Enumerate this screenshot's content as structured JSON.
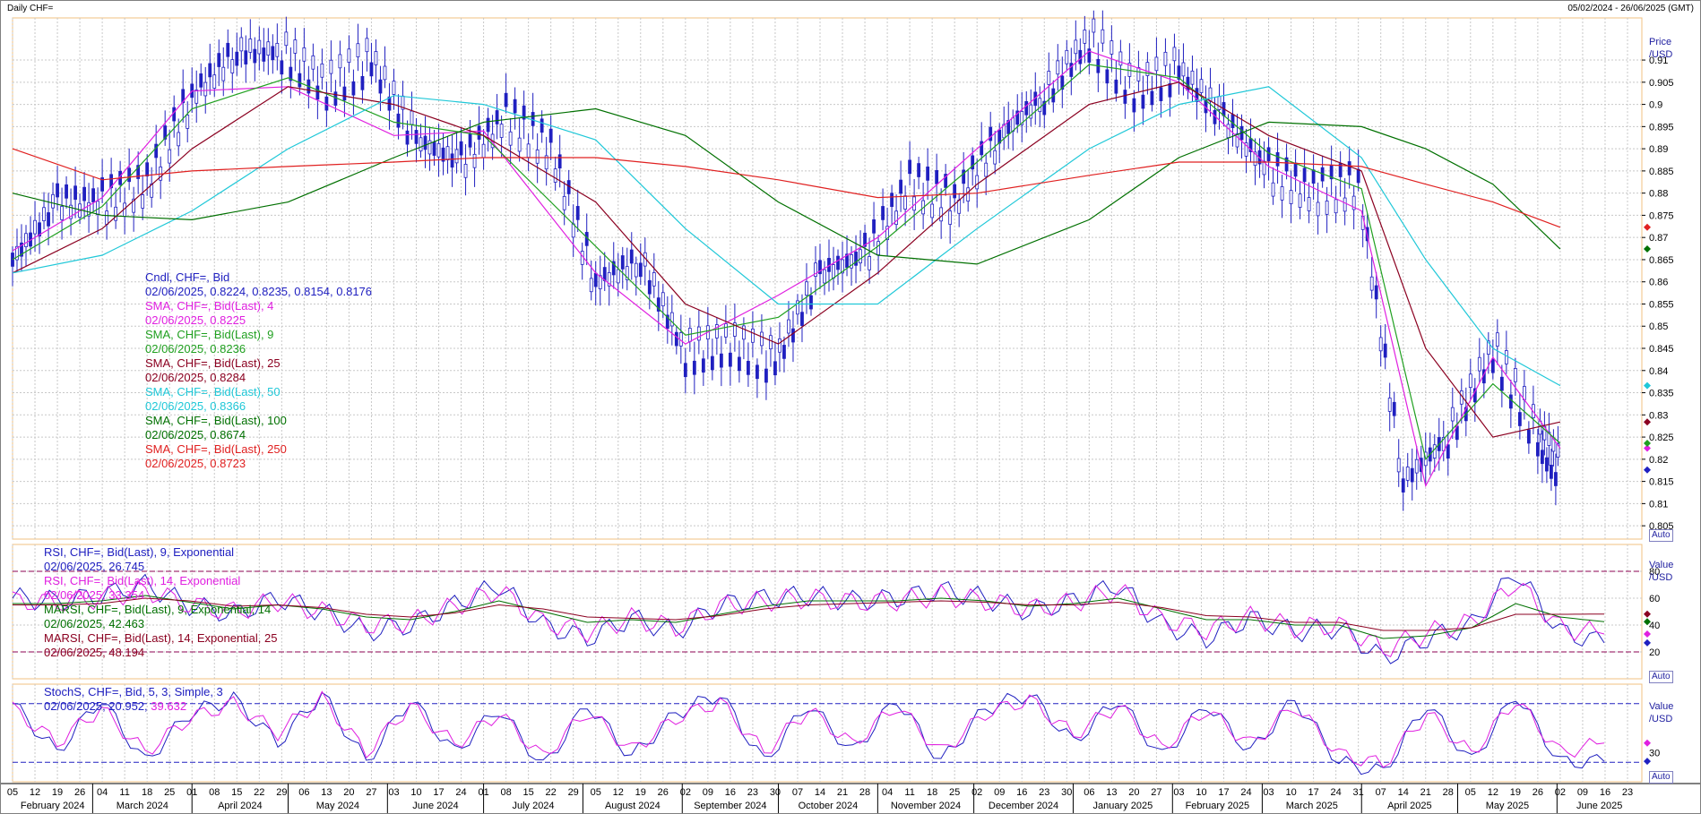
{
  "header": {
    "title": "Daily CHF=",
    "date_range": "05/02/2024 - 26/06/2025 (GMT)"
  },
  "price_axis": {
    "title_line1": "Price",
    "title_line2": "/USD",
    "ticks": [
      "0.91",
      "0.905",
      "0.9",
      "0.895",
      "0.89",
      "0.885",
      "0.88",
      "0.875",
      "0.87",
      "0.865",
      "0.86",
      "0.855",
      "0.85",
      "0.845",
      "0.84",
      "0.835",
      "0.83",
      "0.825",
      "0.82",
      "0.815",
      "0.81",
      "0.805"
    ],
    "auto_label": "Auto"
  },
  "rsi_axis": {
    "title_line1": "Value",
    "title_line2": "/USD",
    "ticks": [
      "80",
      "60",
      "40",
      "20"
    ],
    "auto_label": "Auto"
  },
  "stoch_axis": {
    "title_line1": "Value",
    "title_line2": "/USD",
    "ticks": [
      "30"
    ],
    "auto_label": "Auto"
  },
  "time_axis": {
    "day_ticks": [
      "05",
      "12",
      "19",
      "26",
      "04",
      "11",
      "18",
      "25",
      "01",
      "08",
      "15",
      "22",
      "29",
      "06",
      "13",
      "20",
      "27",
      "03",
      "10",
      "17",
      "24",
      "01",
      "08",
      "15",
      "22",
      "29",
      "05",
      "12",
      "19",
      "26",
      "02",
      "09",
      "16",
      "23",
      "30",
      "07",
      "14",
      "21",
      "28",
      "04",
      "11",
      "18",
      "25",
      "02",
      "09",
      "16",
      "23",
      "30",
      "06",
      "13",
      "20",
      "27",
      "03",
      "10",
      "17",
      "24",
      "03",
      "10",
      "17",
      "24",
      "31",
      "07",
      "14",
      "21",
      "28",
      "05",
      "12",
      "19",
      "26",
      "02",
      "09",
      "16",
      "23"
    ],
    "months": [
      "February 2024",
      "March 2024",
      "April 2024",
      "May 2024",
      "June 2024",
      "July 2024",
      "August 2024",
      "September 2024",
      "October 2024",
      "November 2024",
      "December 2024",
      "January 2025",
      "February 2025",
      "March 2025",
      "April 2025",
      "May 2025",
      "June 2025"
    ]
  },
  "legend_price": [
    {
      "text": "Cndl, CHF=, Bid",
      "color": "#2020c0"
    },
    {
      "text": "02/06/2025, 0.8224, 0.8235, 0.8154, 0.8176",
      "color": "#2020c0"
    },
    {
      "text": "SMA, CHF=, Bid(Last),  4",
      "color": "#e020e0"
    },
    {
      "text": "02/06/2025, 0.8225",
      "color": "#e020e0"
    },
    {
      "text": "SMA, CHF=, Bid(Last),  9",
      "color": "#20a020"
    },
    {
      "text": "02/06/2025, 0.8236",
      "color": "#20a020"
    },
    {
      "text": "SMA, CHF=, Bid(Last),  25",
      "color": "#8b0020"
    },
    {
      "text": "02/06/2025, 0.8284",
      "color": "#8b0020"
    },
    {
      "text": "SMA, CHF=, Bid(Last),  50",
      "color": "#20c8d8"
    },
    {
      "text": "02/06/2025, 0.8366",
      "color": "#20c8d8"
    },
    {
      "text": "SMA, CHF=, Bid(Last),  100",
      "color": "#007000"
    },
    {
      "text": "02/06/2025, 0.8674",
      "color": "#007000"
    },
    {
      "text": "SMA, CHF=, Bid(Last),  250",
      "color": "#e02020"
    },
    {
      "text": "02/06/2025, 0.8723",
      "color": "#e02020"
    }
  ],
  "legend_rsi": [
    {
      "text": "RSI, CHF=, Bid(Last),  9, Exponential",
      "color": "#2020c0"
    },
    {
      "text": "02/06/2025, 26.745",
      "color": "#2020c0"
    },
    {
      "text": "RSI, CHF=, Bid(Last),  14, Exponential",
      "color": "#e020e0"
    },
    {
      "text": "02/06/2025, 33.354",
      "color": "#e020e0"
    },
    {
      "text": "MARSI, CHF=, Bid(Last),  9, Exponential, 14",
      "color": "#007000"
    },
    {
      "text": "02/06/2025, 42.463",
      "color": "#007000"
    },
    {
      "text": "MARSI, CHF=, Bid(Last),  14, Exponential, 25",
      "color": "#8b0020"
    },
    {
      "text": "02/06/2025, 48.194",
      "color": "#8b0020"
    }
  ],
  "legend_stoch": [
    {
      "text": "StochS, CHF=, Bid,  5, 3, Simple, 3",
      "color": "#2020c0"
    },
    {
      "text": "02/06/2025, 20.952, ",
      "color": "#2020c0"
    },
    {
      "text": "39.632",
      "color": "#e020e0"
    }
  ],
  "chart_data": {
    "type": "line",
    "title": "Daily CHF=",
    "ylim": [
      0.802,
      0.9195
    ],
    "series": [
      {
        "name": "Cndl, CHF=, Bid",
        "color": "#2020c0",
        "x": [
          "2024-02-05",
          "2024-02-19",
          "2024-03-04",
          "2024-03-18",
          "2024-04-01",
          "2024-04-15",
          "2024-04-29",
          "2024-05-13",
          "2024-05-27",
          "2024-06-10",
          "2024-06-24",
          "2024-07-08",
          "2024-07-22",
          "2024-08-05",
          "2024-08-19",
          "2024-09-02",
          "2024-09-16",
          "2024-09-30",
          "2024-10-14",
          "2024-10-28",
          "2024-11-11",
          "2024-11-25",
          "2024-12-09",
          "2024-12-23",
          "2025-01-06",
          "2025-01-20",
          "2025-02-03",
          "2025-02-17",
          "2025-03-03",
          "2025-03-17",
          "2025-03-31",
          "2025-04-14",
          "2025-04-28",
          "2025-05-12",
          "2025-05-26",
          "2025-06-02"
        ],
        "values": [
          0.865,
          0.878,
          0.878,
          0.882,
          0.902,
          0.912,
          0.912,
          0.904,
          0.91,
          0.892,
          0.887,
          0.897,
          0.89,
          0.86,
          0.865,
          0.844,
          0.846,
          0.842,
          0.862,
          0.866,
          0.882,
          0.878,
          0.893,
          0.902,
          0.915,
          0.903,
          0.908,
          0.897,
          0.885,
          0.88,
          0.882,
          0.815,
          0.825,
          0.845,
          0.825,
          0.8176
        ]
      },
      {
        "name": "SMA 4",
        "color": "#e020e0",
        "x": [
          "2024-02-05",
          "2024-03-04",
          "2024-04-01",
          "2024-05-01",
          "2024-06-03",
          "2024-07-01",
          "2024-08-05",
          "2024-09-02",
          "2024-10-01",
          "2024-11-01",
          "2024-12-02",
          "2025-01-06",
          "2025-02-03",
          "2025-03-03",
          "2025-04-01",
          "2025-04-21",
          "2025-05-12",
          "2025-06-02"
        ],
        "values": [
          0.867,
          0.879,
          0.903,
          0.904,
          0.893,
          0.894,
          0.862,
          0.846,
          0.857,
          0.87,
          0.89,
          0.912,
          0.905,
          0.886,
          0.876,
          0.814,
          0.843,
          0.8225
        ]
      },
      {
        "name": "SMA 9",
        "color": "#20a020",
        "x": [
          "2024-02-05",
          "2024-03-04",
          "2024-04-01",
          "2024-05-01",
          "2024-06-03",
          "2024-07-01",
          "2024-08-05",
          "2024-09-02",
          "2024-10-01",
          "2024-11-01",
          "2024-12-02",
          "2025-01-06",
          "2025-02-03",
          "2025-03-03",
          "2025-04-01",
          "2025-04-21",
          "2025-05-12",
          "2025-06-02"
        ],
        "values": [
          0.865,
          0.877,
          0.899,
          0.906,
          0.896,
          0.893,
          0.868,
          0.848,
          0.852,
          0.868,
          0.887,
          0.909,
          0.906,
          0.889,
          0.881,
          0.82,
          0.837,
          0.8236
        ]
      },
      {
        "name": "SMA 25",
        "color": "#8b0020",
        "x": [
          "2024-02-05",
          "2024-03-04",
          "2024-04-01",
          "2024-05-01",
          "2024-06-03",
          "2024-07-01",
          "2024-08-05",
          "2024-09-02",
          "2024-10-01",
          "2024-11-01",
          "2024-12-02",
          "2025-01-06",
          "2025-02-03",
          "2025-03-03",
          "2025-04-01",
          "2025-04-21",
          "2025-05-12",
          "2025-06-02"
        ],
        "values": [
          0.862,
          0.872,
          0.89,
          0.904,
          0.9,
          0.893,
          0.878,
          0.855,
          0.846,
          0.862,
          0.882,
          0.9,
          0.905,
          0.893,
          0.885,
          0.845,
          0.825,
          0.8284
        ]
      },
      {
        "name": "SMA 50",
        "color": "#20c8d8",
        "x": [
          "2024-02-05",
          "2024-03-04",
          "2024-04-01",
          "2024-05-01",
          "2024-06-03",
          "2024-07-01",
          "2024-08-05",
          "2024-09-02",
          "2024-10-01",
          "2024-11-01",
          "2024-12-02",
          "2025-01-06",
          "2025-02-03",
          "2025-03-03",
          "2025-04-01",
          "2025-04-21",
          "2025-05-12",
          "2025-06-02"
        ],
        "values": [
          0.862,
          0.866,
          0.876,
          0.89,
          0.902,
          0.9,
          0.892,
          0.872,
          0.855,
          0.855,
          0.872,
          0.89,
          0.9,
          0.904,
          0.888,
          0.865,
          0.845,
          0.8366
        ]
      },
      {
        "name": "SMA 100",
        "color": "#007000",
        "x": [
          "2024-02-05",
          "2024-03-04",
          "2024-04-01",
          "2024-05-01",
          "2024-06-03",
          "2024-07-01",
          "2024-08-05",
          "2024-09-02",
          "2024-10-01",
          "2024-11-01",
          "2024-12-02",
          "2025-01-06",
          "2025-02-03",
          "2025-03-03",
          "2025-04-01",
          "2025-04-21",
          "2025-05-12",
          "2025-06-02"
        ],
        "values": [
          0.88,
          0.875,
          0.874,
          0.878,
          0.888,
          0.896,
          0.899,
          0.893,
          0.878,
          0.866,
          0.864,
          0.874,
          0.888,
          0.896,
          0.895,
          0.89,
          0.882,
          0.8674
        ]
      },
      {
        "name": "SMA 250",
        "color": "#e02020",
        "x": [
          "2024-02-05",
          "2024-03-04",
          "2024-04-01",
          "2024-05-01",
          "2024-06-03",
          "2024-07-01",
          "2024-08-05",
          "2024-09-02",
          "2024-10-01",
          "2024-11-01",
          "2024-12-02",
          "2025-01-06",
          "2025-02-03",
          "2025-03-03",
          "2025-04-01",
          "2025-04-21",
          "2025-05-12",
          "2025-06-02"
        ],
        "values": [
          0.89,
          0.883,
          0.885,
          0.886,
          0.887,
          0.888,
          0.888,
          0.886,
          0.883,
          0.879,
          0.88,
          0.884,
          0.887,
          0.887,
          0.886,
          0.882,
          0.878,
          0.8723
        ]
      }
    ],
    "rsi": {
      "ylim": [
        0,
        100
      ],
      "ref_lines": [
        80,
        20
      ],
      "series": [
        {
          "name": "RSI 9",
          "color": "#2020c0",
          "values": [
            60,
            58,
            62,
            70,
            55,
            48,
            60,
            50,
            35,
            40,
            55,
            70,
            40,
            30,
            45,
            35,
            55,
            60,
            62,
            58,
            60,
            66,
            60,
            50,
            58,
            70,
            40,
            30,
            45,
            35,
            38,
            15,
            30,
            40,
            80,
            35,
            26.745
          ]
        },
        {
          "name": "RSI 14",
          "color": "#e020e0",
          "values": [
            58,
            57,
            60,
            66,
            55,
            50,
            58,
            50,
            40,
            42,
            54,
            66,
            42,
            35,
            45,
            38,
            54,
            58,
            60,
            57,
            58,
            62,
            58,
            52,
            57,
            66,
            44,
            36,
            46,
            38,
            40,
            22,
            34,
            42,
            72,
            38,
            33.354
          ]
        },
        {
          "name": "MARSI 9",
          "color": "#007000",
          "values": [
            56,
            56,
            58,
            62,
            57,
            52,
            55,
            52,
            46,
            44,
            50,
            58,
            50,
            42,
            44,
            42,
            48,
            54,
            58,
            58,
            58,
            60,
            58,
            54,
            56,
            60,
            52,
            44,
            44,
            40,
            40,
            30,
            32,
            38,
            56,
            46,
            42.463
          ]
        },
        {
          "name": "MARSI 14",
          "color": "#8b0020",
          "values": [
            55,
            55,
            56,
            60,
            58,
            54,
            55,
            53,
            48,
            46,
            49,
            55,
            52,
            46,
            45,
            44,
            47,
            52,
            55,
            56,
            57,
            58,
            57,
            55,
            55,
            57,
            53,
            47,
            46,
            42,
            42,
            36,
            36,
            38,
            48,
            48,
            48.194
          ]
        }
      ]
    },
    "stoch": {
      "ylim": [
        0,
        100
      ],
      "ref_lines": [
        80,
        20
      ],
      "series": [
        {
          "name": "StochS %K",
          "color": "#2020c0",
          "values": [
            80,
            30,
            85,
            20,
            70,
            85,
            40,
            90,
            20,
            85,
            30,
            75,
            15,
            80,
            25,
            70,
            90,
            20,
            80,
            30,
            85,
            20,
            75,
            90,
            40,
            85,
            25,
            80,
            30,
            85,
            20,
            10,
            80,
            20,
            90,
            20,
            20.952
          ]
        },
        {
          "name": "StochS %D",
          "color": "#e020e0",
          "values": [
            75,
            40,
            75,
            30,
            65,
            80,
            50,
            85,
            30,
            78,
            38,
            70,
            25,
            72,
            32,
            65,
            82,
            30,
            74,
            38,
            78,
            30,
            70,
            84,
            48,
            78,
            34,
            74,
            38,
            78,
            28,
            18,
            70,
            28,
            84,
            30,
            39.632
          ]
        }
      ]
    }
  }
}
